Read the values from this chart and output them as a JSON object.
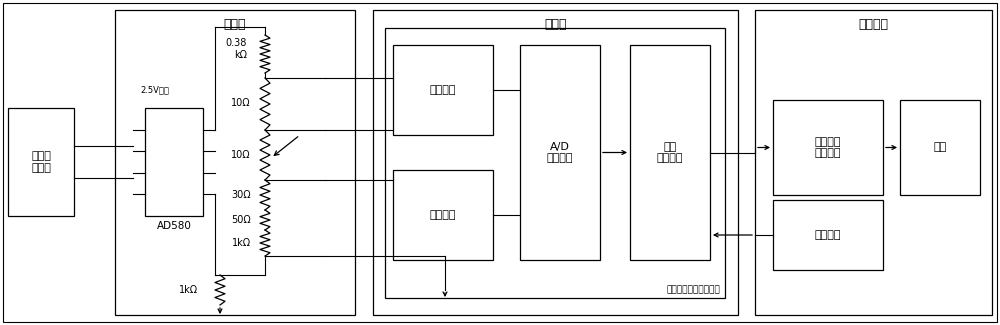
{
  "bg": "#ffffff",
  "lc": "#000000",
  "labels": {
    "chip_power": "芯片供\n电电源",
    "input_src": "输入源",
    "ad580": "AD580",
    "v25": "2.5V输出",
    "r038": "0.38\nkΩ",
    "r10a": "10Ω",
    "r10b": "10Ω",
    "r30": "30Ω",
    "r50": "50Ω",
    "r1k_a": "1kΩ",
    "r1k_b": "1kΩ",
    "wenxun": "温循筱",
    "amplify": "放大电路",
    "reference": "参考电路",
    "ad_conv": "A/D\n变换电路",
    "signal_proc": "信号\n处理电路",
    "high_prec": "高精度低温漂测温电路",
    "test_equip": "测试设备",
    "temp_recv": "温度数据\n接收电路",
    "power_supply2": "供电电源",
    "computer": "电脑"
  }
}
